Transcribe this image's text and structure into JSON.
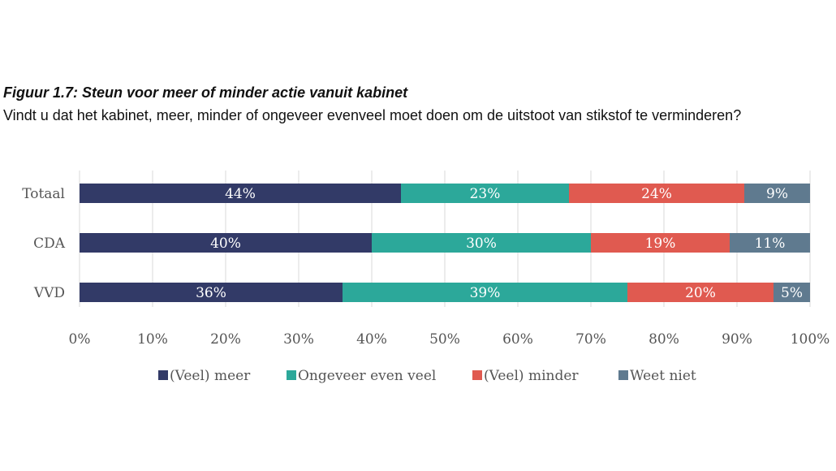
{
  "chart_data": {
    "type": "bar",
    "orientation": "horizontal",
    "stacked": true,
    "title": "Figuur 1.7: Steun voor meer of minder actie vanuit kabinet",
    "subtitle": "Vindt u dat het kabinet, meer, minder of ongeveer evenveel moet doen om de uitstoot van stikstof te verminderen?",
    "categories": [
      "Totaal",
      "CDA",
      "VVD"
    ],
    "series": [
      {
        "name": "(Veel) meer",
        "color": "#323a67",
        "values": [
          44,
          40,
          36
        ]
      },
      {
        "name": "Ongeveer even veel",
        "color": "#2ca89a",
        "values": [
          23,
          30,
          39
        ]
      },
      {
        "name": "(Veel) minder",
        "color": "#e05a50",
        "values": [
          24,
          19,
          20
        ]
      },
      {
        "name": "Weet niet",
        "color": "#5f7a8f",
        "values": [
          9,
          11,
          5
        ]
      }
    ],
    "xlim": [
      0,
      100
    ],
    "xticks": [
      "0%",
      "10%",
      "20%",
      "30%",
      "40%",
      "50%",
      "60%",
      "70%",
      "80%",
      "90%",
      "100%"
    ],
    "value_suffix": "%",
    "grid": "vertical",
    "legend": "bottom"
  }
}
